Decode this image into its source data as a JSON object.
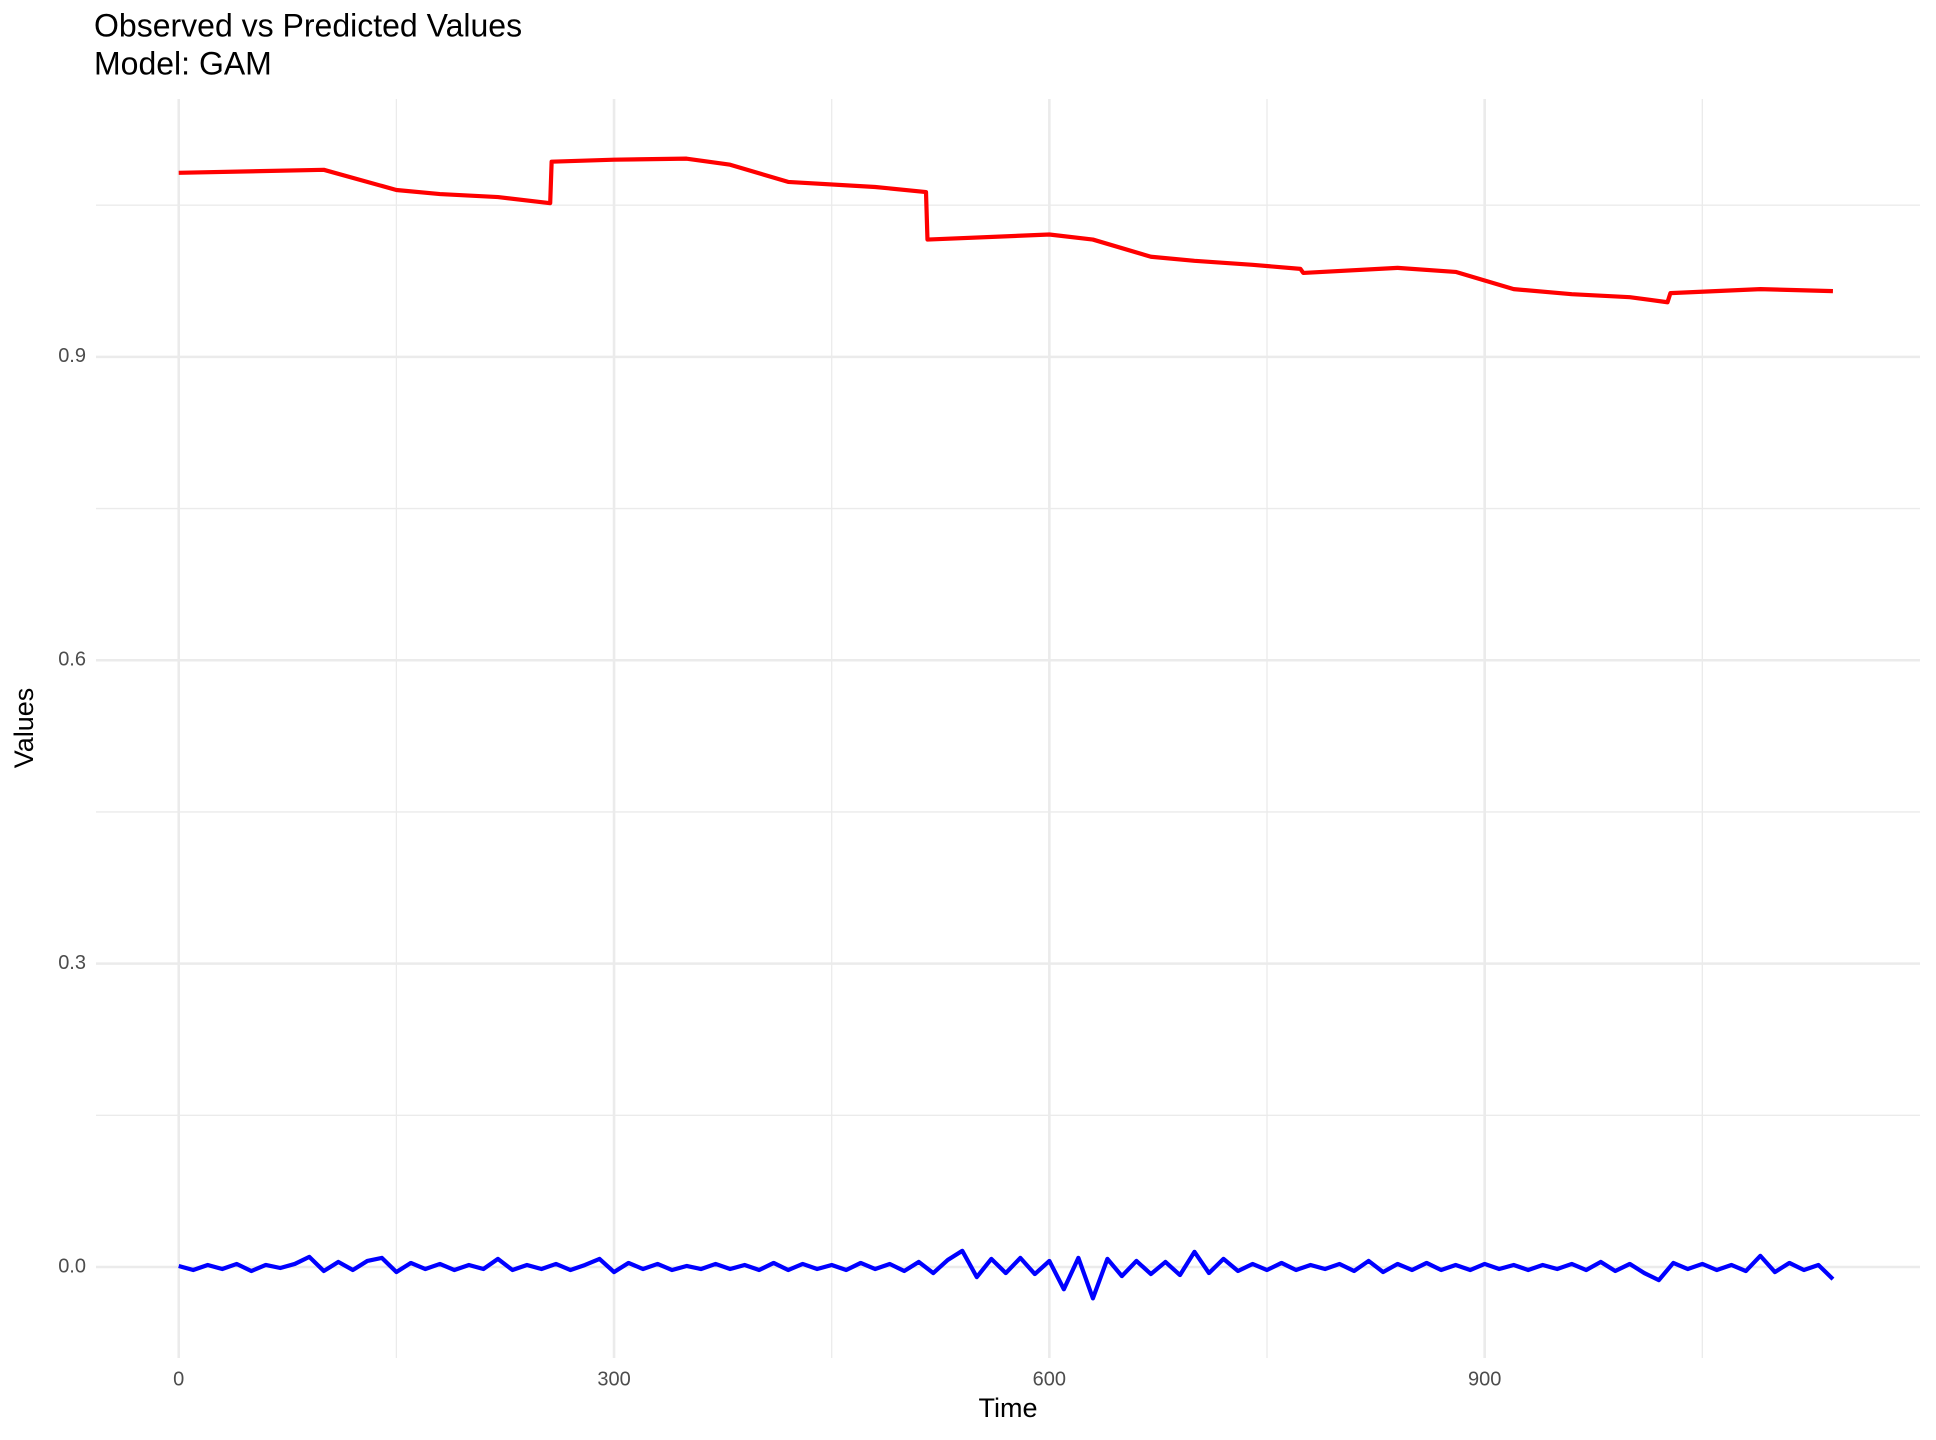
{
  "chart_data": {
    "type": "line",
    "title": "Observed vs Predicted Values",
    "subtitle": "Model: GAM",
    "x_label": "Time",
    "y_label": "Values",
    "xlim": [
      -57,
      1200
    ],
    "ylim": [
      -0.09,
      1.155
    ],
    "xticks": [
      0,
      300,
      600,
      900
    ],
    "x_minor_ticks": [
      150,
      450,
      750,
      1050
    ],
    "yticks": [
      {
        "value": 0,
        "label": "0.0"
      },
      {
        "value": 0.3,
        "label": "0.3"
      },
      {
        "value": 0.6,
        "label": "0.6"
      },
      {
        "value": 0.9,
        "label": "0.9"
      }
    ],
    "y_minor_ticks": [
      0.15,
      0.45,
      0.75,
      1.05
    ],
    "grid": true,
    "series": [
      {
        "color": "#ff0000",
        "x": [
          0,
          100,
          150,
          180,
          220,
          256,
          257,
          300,
          350,
          380,
          420,
          480,
          515,
          516,
          600,
          630,
          670,
          700,
          740,
          773,
          775,
          840,
          880,
          920,
          960,
          1000,
          1026,
          1028,
          1090,
          1140
        ],
        "values": [
          1.082,
          1.085,
          1.065,
          1.061,
          1.058,
          1.052,
          1.093,
          1.095,
          1.096,
          1.09,
          1.073,
          1.068,
          1.063,
          1.016,
          1.021,
          1.016,
          0.999,
          0.995,
          0.991,
          0.987,
          0.983,
          0.988,
          0.984,
          0.967,
          0.962,
          0.959,
          0.954,
          0.963,
          0.967,
          0.965
        ]
      },
      {
        "color": "#0000ff",
        "x": [
          0,
          10,
          20,
          30,
          40,
          50,
          60,
          70,
          80,
          90,
          100,
          110,
          120,
          130,
          140,
          150,
          160,
          170,
          180,
          190,
          200,
          210,
          220,
          230,
          240,
          250,
          260,
          270,
          280,
          290,
          300,
          310,
          320,
          330,
          340,
          350,
          360,
          370,
          380,
          390,
          400,
          410,
          420,
          430,
          440,
          450,
          460,
          470,
          480,
          490,
          500,
          510,
          520,
          530,
          540,
          550,
          560,
          570,
          580,
          590,
          600,
          610,
          620,
          630,
          640,
          650,
          660,
          670,
          680,
          690,
          700,
          710,
          720,
          730,
          740,
          750,
          760,
          770,
          780,
          790,
          800,
          810,
          820,
          830,
          840,
          850,
          860,
          870,
          880,
          890,
          900,
          910,
          920,
          930,
          940,
          950,
          960,
          970,
          980,
          990,
          1000,
          1010,
          1020,
          1030,
          1040,
          1050,
          1060,
          1070,
          1080,
          1090,
          1100,
          1110,
          1120,
          1130,
          1140
        ],
        "values": [
          0.001,
          -0.003,
          0.002,
          -0.002,
          0.003,
          -0.004,
          0.002,
          -0.001,
          0.003,
          0.01,
          -0.004,
          0.005,
          -0.003,
          0.006,
          0.009,
          -0.005,
          0.004,
          -0.002,
          0.003,
          -0.003,
          0.002,
          -0.002,
          0.008,
          -0.003,
          0.002,
          -0.002,
          0.003,
          -0.003,
          0.002,
          0.008,
          -0.005,
          0.004,
          -0.002,
          0.003,
          -0.003,
          0.001,
          -0.002,
          0.003,
          -0.002,
          0.002,
          -0.003,
          0.004,
          -0.003,
          0.003,
          -0.002,
          0.002,
          -0.003,
          0.004,
          -0.002,
          0.003,
          -0.004,
          0.005,
          -0.006,
          0.007,
          0.016,
          -0.01,
          0.008,
          -0.006,
          0.009,
          -0.007,
          0.006,
          -0.022,
          0.009,
          -0.031,
          0.008,
          -0.009,
          0.006,
          -0.007,
          0.005,
          -0.008,
          0.015,
          -0.006,
          0.008,
          -0.004,
          0.003,
          -0.003,
          0.004,
          -0.003,
          0.002,
          -0.002,
          0.003,
          -0.004,
          0.006,
          -0.005,
          0.003,
          -0.003,
          0.004,
          -0.003,
          0.002,
          -0.003,
          0.003,
          -0.002,
          0.002,
          -0.003,
          0.002,
          -0.002,
          0.003,
          -0.003,
          0.005,
          -0.004,
          0.003,
          -0.006,
          -0.013,
          0.004,
          -0.002,
          0.003,
          -0.003,
          0.002,
          -0.004,
          0.011,
          -0.005,
          0.004,
          -0.003,
          0.002,
          -0.012
        ]
      }
    ]
  }
}
